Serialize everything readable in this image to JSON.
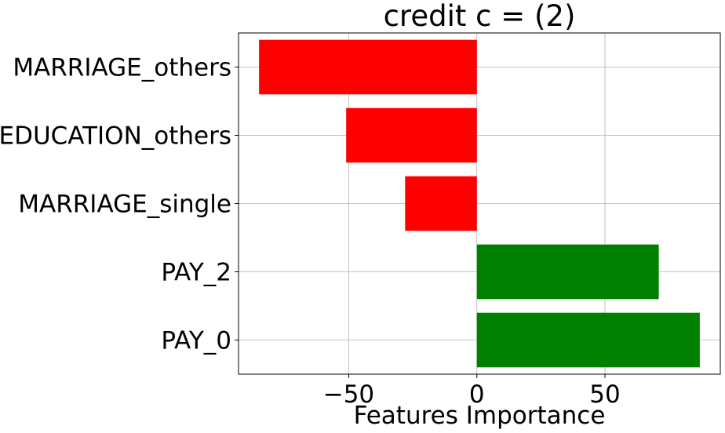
{
  "chart_data": {
    "type": "bar",
    "orientation": "horizontal",
    "title": "credit c = (2)",
    "xlabel": "Features Importance",
    "ylabel": "",
    "categories": [
      "MARRIAGE_others",
      "EDUCATION_others",
      "MARRIAGE_single",
      "PAY_2",
      "PAY_0"
    ],
    "values": [
      -85,
      -51,
      -28,
      71,
      87
    ],
    "xlim": [
      -93,
      95
    ],
    "xticks": [
      -50,
      0,
      50
    ],
    "xtick_labels": [
      "−50",
      "0",
      "50"
    ],
    "grid": true,
    "colors": {
      "positive": "#008000",
      "negative": "#ff0000"
    }
  }
}
